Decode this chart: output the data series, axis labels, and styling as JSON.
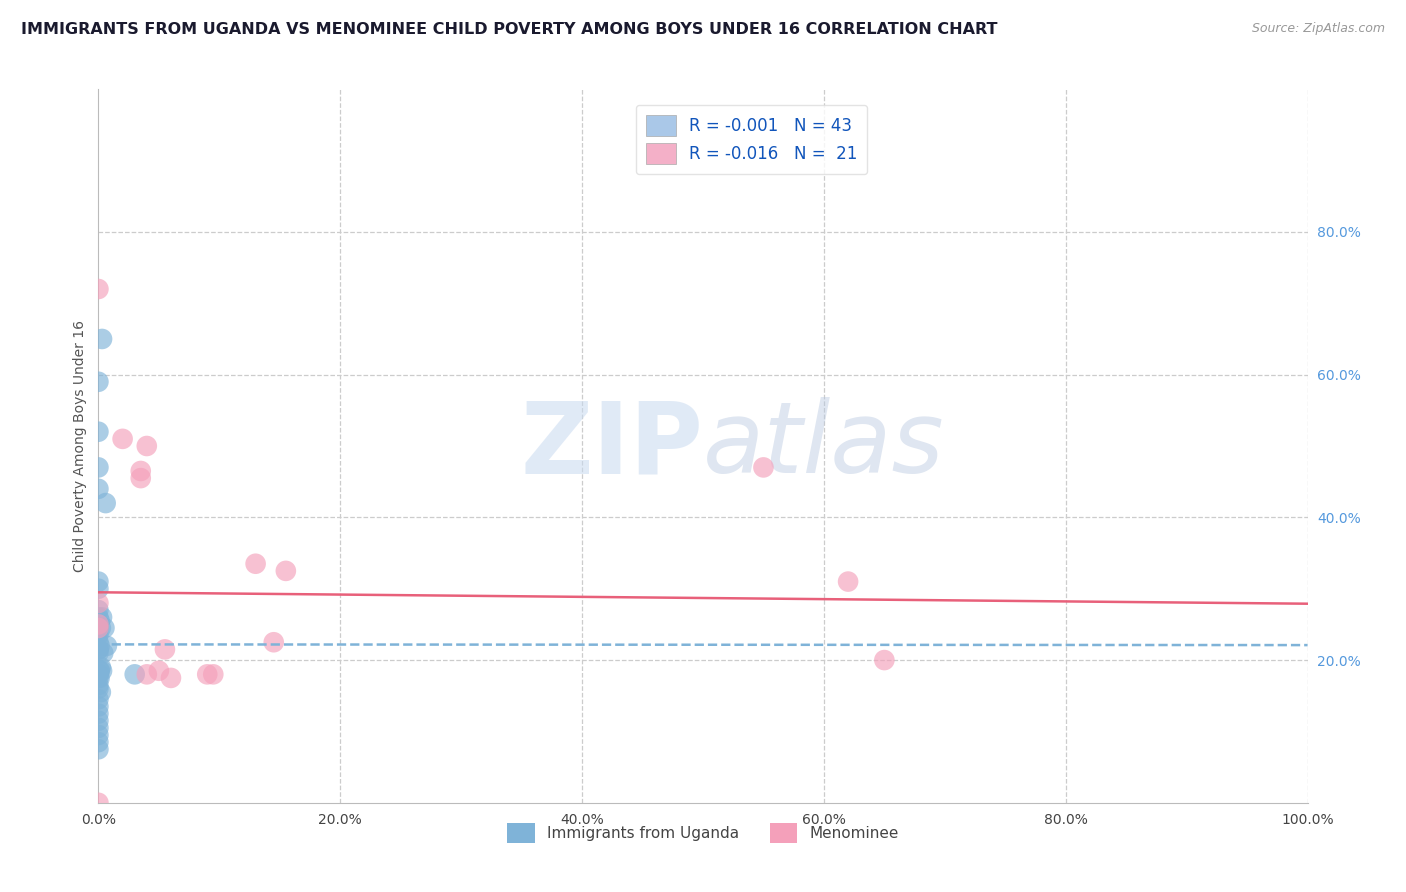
{
  "title": "IMMIGRANTS FROM UGANDA VS MENOMINEE CHILD POVERTY AMONG BOYS UNDER 16 CORRELATION CHART",
  "source": "Source: ZipAtlas.com",
  "ylabel": "Child Poverty Among Boys Under 16",
  "xlim": [
    0,
    1.0
  ],
  "ylim": [
    0,
    1.0
  ],
  "xtick_labels": [
    "0.0%",
    "",
    "20.0%",
    "",
    "40.0%",
    "",
    "60.0%",
    "",
    "80.0%",
    "",
    "100.0%"
  ],
  "xtick_vals": [
    0.0,
    0.1,
    0.2,
    0.3,
    0.4,
    0.5,
    0.6,
    0.7,
    0.8,
    0.9,
    1.0
  ],
  "ytick_labels_right": [
    "20.0%",
    "40.0%",
    "60.0%",
    "80.0%"
  ],
  "ytick_vals_right": [
    0.2,
    0.4,
    0.6,
    0.8
  ],
  "legend_entry1": "R = -0.001   N = 43",
  "legend_entry2": "R = -0.016   N =  21",
  "legend_color1": "#aac8e8",
  "legend_color2": "#f4b0c8",
  "watermark_zip": "ZIP",
  "watermark_atlas": "atlas",
  "blue_scatter_x": [
    0.003,
    0.0,
    0.0,
    0.0,
    0.0,
    0.0,
    0.003,
    0.004,
    0.002,
    0.006,
    0.0,
    0.0,
    0.005,
    0.001,
    0.0,
    0.0,
    0.0,
    0.001,
    0.002,
    0.0,
    0.0,
    0.007,
    0.0,
    0.0,
    0.001,
    0.0,
    0.001,
    0.003,
    0.0,
    0.03,
    0.0,
    0.001,
    0.0,
    0.0,
    0.002,
    0.0,
    0.0,
    0.0,
    0.0,
    0.0,
    0.0,
    0.0,
    0.0
  ],
  "blue_scatter_y": [
    0.65,
    0.59,
    0.26,
    0.52,
    0.47,
    0.44,
    0.26,
    0.21,
    0.19,
    0.42,
    0.3,
    0.245,
    0.245,
    0.185,
    0.31,
    0.27,
    0.245,
    0.255,
    0.245,
    0.235,
    0.225,
    0.22,
    0.215,
    0.215,
    0.22,
    0.21,
    0.185,
    0.185,
    0.18,
    0.18,
    0.175,
    0.175,
    0.165,
    0.16,
    0.155,
    0.145,
    0.135,
    0.125,
    0.115,
    0.105,
    0.095,
    0.085,
    0.075
  ],
  "pink_scatter_x": [
    0.0,
    0.02,
    0.04,
    0.035,
    0.035,
    0.055,
    0.05,
    0.04,
    0.06,
    0.55,
    0.62,
    0.65,
    0.0,
    0.13,
    0.145,
    0.155,
    0.09,
    0.095,
    0.0,
    0.0,
    0.0
  ],
  "pink_scatter_y": [
    0.72,
    0.51,
    0.5,
    0.455,
    0.465,
    0.215,
    0.185,
    0.18,
    0.175,
    0.47,
    0.31,
    0.2,
    0.28,
    0.335,
    0.225,
    0.325,
    0.18,
    0.18,
    0.25,
    0.245,
    0.0
  ],
  "blue_line_x": [
    0.0,
    1.0
  ],
  "blue_line_y": [
    0.222,
    0.221
  ],
  "pink_line_x": [
    0.0,
    1.0
  ],
  "pink_line_y": [
    0.295,
    0.279
  ],
  "scatter_color_blue": "#7fb3d8",
  "scatter_color_pink": "#f4a0ba",
  "line_color_blue": "#7fb3d8",
  "line_color_pink": "#e8607a",
  "grid_color": "#cccccc",
  "background_color": "#ffffff",
  "title_color": "#1a1a2e",
  "ylabel_color": "#555555",
  "right_tick_color": "#5599dd"
}
